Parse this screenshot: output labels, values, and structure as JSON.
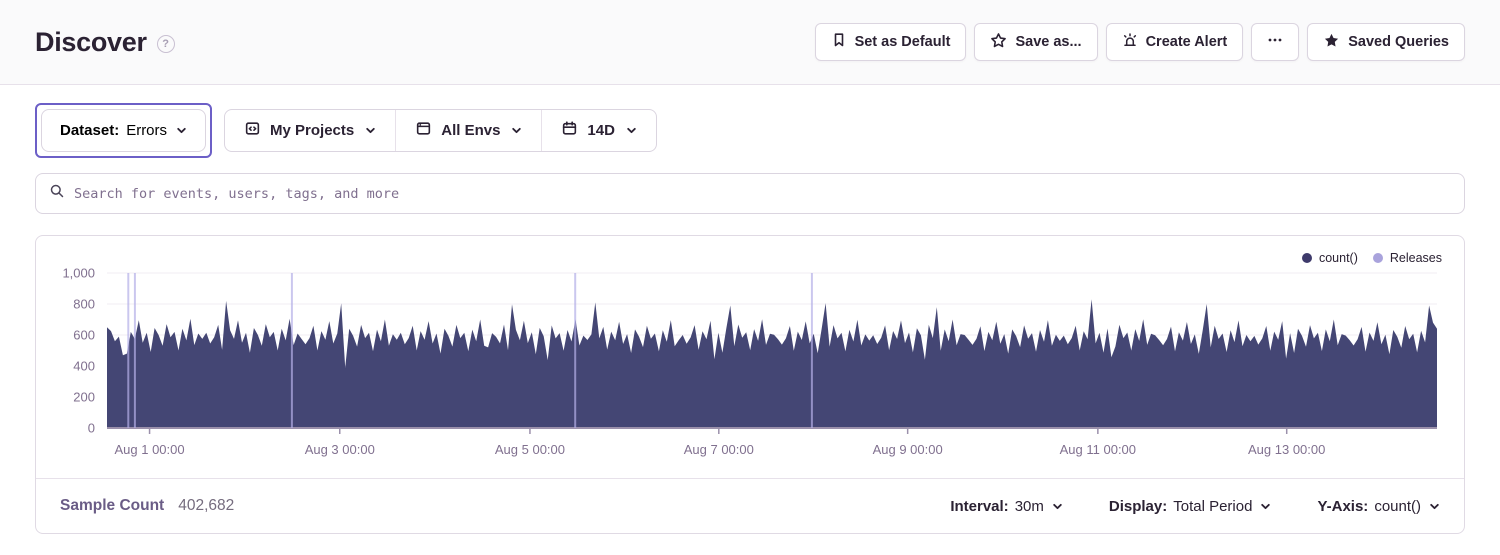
{
  "header": {
    "title": "Discover",
    "actions": {
      "set_default": "Set as Default",
      "save_as": "Save as...",
      "create_alert": "Create Alert",
      "saved_queries": "Saved Queries"
    }
  },
  "filters": {
    "dataset_label": "Dataset:",
    "dataset_value": "Errors",
    "projects": "My Projects",
    "environments": "All Envs",
    "date_range": "14D"
  },
  "search": {
    "placeholder": "Search for events, users, tags, and more"
  },
  "chart": {
    "legend": [
      {
        "label": "count()",
        "color": "#3E3A6B"
      },
      {
        "label": "Releases",
        "color": "#A9A3DC"
      }
    ]
  },
  "chart_data": {
    "type": "area",
    "title": "count() over time",
    "series_name": "count()",
    "interval": "30m",
    "ylim": [
      0,
      1000
    ],
    "y_ticks": [
      0,
      200,
      400,
      600,
      800,
      1000
    ],
    "y_tick_labels": [
      "0",
      "200",
      "400",
      "600",
      "800",
      "1,000"
    ],
    "x_ticks": [
      {
        "label": "Aug 1 00:00",
        "pos": 0.032
      },
      {
        "label": "Aug 3 00:00",
        "pos": 0.175
      },
      {
        "label": "Aug 5 00:00",
        "pos": 0.318
      },
      {
        "label": "Aug 7 00:00",
        "pos": 0.46
      },
      {
        "label": "Aug 9 00:00",
        "pos": 0.602
      },
      {
        "label": "Aug 11 00:00",
        "pos": 0.745
      },
      {
        "label": "Aug 13 00:00",
        "pos": 0.887
      }
    ],
    "area_color": "#444674",
    "axis_color": "#9B90AB",
    "grid_color": "#F0EDF3",
    "tick_label_color": "#80708F",
    "release_color": "#B5B0E8",
    "releases_pos": [
      0.016,
      0.021,
      0.139,
      0.352,
      0.53
    ],
    "values": [
      650,
      625,
      560,
      590,
      470,
      480,
      620,
      575,
      695,
      550,
      615,
      490,
      645,
      600,
      530,
      670,
      585,
      620,
      500,
      640,
      565,
      705,
      535,
      610,
      575,
      615,
      545,
      585,
      665,
      505,
      820,
      630,
      575,
      695,
      550,
      615,
      485,
      645,
      600,
      530,
      670,
      585,
      620,
      500,
      640,
      565,
      705,
      535,
      610,
      575,
      540,
      580,
      660,
      500,
      625,
      570,
      690,
      545,
      610,
      805,
      390,
      640,
      595,
      525,
      665,
      580,
      615,
      495,
      635,
      560,
      700,
      530,
      605,
      570,
      615,
      540,
      580,
      660,
      500,
      625,
      570,
      690,
      545,
      610,
      480,
      640,
      595,
      525,
      665,
      580,
      615,
      495,
      635,
      560,
      700,
      530,
      520,
      612,
      588,
      546,
      668,
      502,
      798,
      634,
      566,
      692,
      548,
      618,
      476,
      646,
      592,
      438,
      662,
      578,
      612,
      498,
      632,
      558,
      702,
      532,
      596,
      568,
      604,
      810,
      578,
      652,
      506,
      622,
      566,
      686,
      542,
      606,
      484,
      636,
      590,
      522,
      660,
      576,
      610,
      494,
      630,
      556,
      696,
      528,
      566,
      600,
      544,
      584,
      664,
      504,
      624,
      572,
      692,
      444,
      614,
      486,
      642,
      790,
      528,
      668,
      582,
      618,
      502,
      638,
      562,
      702,
      536,
      608,
      602,
      572,
      538,
      578,
      658,
      498,
      622,
      568,
      688,
      546,
      608,
      482,
      638,
      806,
      524,
      664,
      578,
      614,
      494,
      634,
      558,
      698,
      532,
      604,
      564,
      598,
      542,
      582,
      662,
      502,
      626,
      574,
      694,
      548,
      616,
      488,
      644,
      598,
      440,
      666,
      580,
      780,
      498,
      636,
      560,
      700,
      534,
      606,
      600,
      570,
      536,
      576,
      656,
      496,
      620,
      566,
      686,
      544,
      606,
      480,
      636,
      592,
      522,
      662,
      576,
      612,
      492,
      632,
      556,
      696,
      530,
      602,
      562,
      596,
      540,
      580,
      660,
      500,
      624,
      572,
      830,
      546,
      614,
      486,
      642,
      456,
      526,
      666,
      580,
      616,
      500,
      638,
      562,
      702,
      536,
      608,
      598,
      568,
      534,
      574,
      654,
      494,
      618,
      564,
      684,
      542,
      604,
      478,
      634,
      800,
      520,
      660,
      574,
      610,
      490,
      630,
      554,
      694,
      528,
      600,
      560,
      594,
      538,
      578,
      658,
      498,
      622,
      570,
      690,
      448,
      612,
      484,
      640,
      594,
      524,
      664,
      578,
      614,
      496,
      636,
      560,
      700,
      534,
      606,
      596,
      566,
      532,
      572,
      652,
      492,
      616,
      562,
      682,
      540,
      602,
      476,
      632,
      588,
      518,
      658,
      572,
      608,
      488,
      628,
      552,
      790,
      680,
      640
    ]
  },
  "panel_footer": {
    "sample_count_label": "Sample Count",
    "sample_count_value": "402,682",
    "interval_label": "Interval:",
    "interval_value": "30m",
    "display_label": "Display:",
    "display_value": "Total Period",
    "yaxis_label": "Y-Axis:",
    "yaxis_value": "count()"
  }
}
